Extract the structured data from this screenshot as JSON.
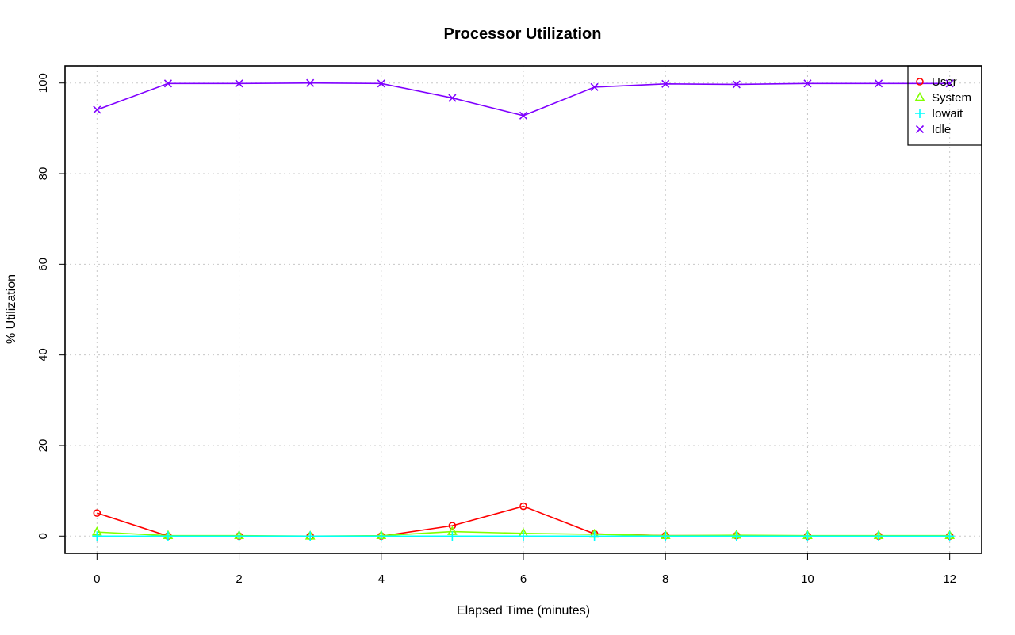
{
  "chart_data": {
    "type": "line",
    "title": "Processor Utilization",
    "xlabel": "Elapsed Time (minutes)",
    "ylabel": "% Utilization",
    "xlim": [
      -0.45,
      12.45
    ],
    "ylim": [
      -3.8,
      103.8
    ],
    "xticks": [
      0,
      2,
      4,
      6,
      8,
      10,
      12
    ],
    "yticks": [
      0,
      20,
      40,
      60,
      80,
      100
    ],
    "grid": true,
    "legend_position": "top-right",
    "x": [
      0,
      1,
      2,
      3,
      4,
      5,
      6,
      7,
      8,
      9,
      10,
      11,
      12
    ],
    "series": [
      {
        "name": "User",
        "color": "#ff0000",
        "marker": "circle",
        "values": [
          5.1,
          0.0,
          0.0,
          0.0,
          0.0,
          2.3,
          6.6,
          0.5,
          0.1,
          0.1,
          0.0,
          0.0,
          0.0
        ]
      },
      {
        "name": "System",
        "color": "#80ff00",
        "marker": "triangle",
        "values": [
          0.9,
          0.1,
          0.1,
          0.0,
          0.1,
          1.0,
          0.6,
          0.4,
          0.1,
          0.2,
          0.1,
          0.1,
          0.1
        ]
      },
      {
        "name": "Iowait",
        "color": "#00ffff",
        "marker": "plus",
        "values": [
          0.0,
          0.0,
          0.0,
          0.0,
          0.0,
          0.0,
          0.0,
          0.0,
          0.0,
          0.0,
          0.0,
          0.0,
          0.0
        ]
      },
      {
        "name": "Idle",
        "color": "#8000ff",
        "marker": "cross",
        "values": [
          94.1,
          99.9,
          99.9,
          100.0,
          99.9,
          96.7,
          92.8,
          99.1,
          99.8,
          99.7,
          99.9,
          99.9,
          99.9
        ]
      }
    ]
  }
}
